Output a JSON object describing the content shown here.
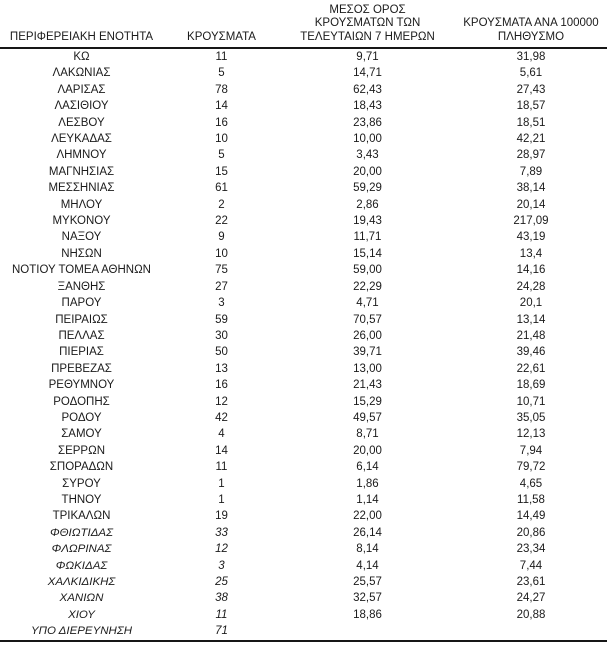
{
  "table": {
    "headers": {
      "col1": [
        "ΠΕΡΙΦΕΡΕΙΑΚΗ ΕΝΟΤΗΤΑ"
      ],
      "col2": [
        "ΚΡΟΥΣΜΑΤΑ"
      ],
      "col3": [
        "ΜΕΣΟΣ ΟΡΟΣ",
        "ΚΡΟΥΣΜΑΤΩΝ ΤΩΝ",
        "ΤΕΛΕΥΤΑΙΩΝ 7 ΗΜΕΡΩΝ"
      ],
      "col4": [
        "ΚΡΟΥΣΜΑΤΑ ΑΝΑ 100000",
        "ΠΛΗΘΥΣΜΟ"
      ]
    },
    "rows": [
      {
        "region": "ΚΩ",
        "cases": "11",
        "avg7": "9,71",
        "per100k": "31,98",
        "italic": false
      },
      {
        "region": "ΛΑΚΩΝΙΑΣ",
        "cases": "5",
        "avg7": "14,71",
        "per100k": "5,61",
        "italic": false
      },
      {
        "region": "ΛΑΡΙΣΑΣ",
        "cases": "78",
        "avg7": "62,43",
        "per100k": "27,43",
        "italic": false
      },
      {
        "region": "ΛΑΣΙΘΙΟΥ",
        "cases": "14",
        "avg7": "18,43",
        "per100k": "18,57",
        "italic": false
      },
      {
        "region": "ΛΕΣΒΟΥ",
        "cases": "16",
        "avg7": "23,86",
        "per100k": "18,51",
        "italic": false
      },
      {
        "region": "ΛΕΥΚΑΔΑΣ",
        "cases": "10",
        "avg7": "10,00",
        "per100k": "42,21",
        "italic": false
      },
      {
        "region": "ΛΗΜΝΟΥ",
        "cases": "5",
        "avg7": "3,43",
        "per100k": "28,97",
        "italic": false
      },
      {
        "region": "ΜΑΓΝΗΣΙΑΣ",
        "cases": "15",
        "avg7": "20,00",
        "per100k": "7,89",
        "italic": false
      },
      {
        "region": "ΜΕΣΣΗΝΙΑΣ",
        "cases": "61",
        "avg7": "59,29",
        "per100k": "38,14",
        "italic": false
      },
      {
        "region": "ΜΗΛΟΥ",
        "cases": "2",
        "avg7": "2,86",
        "per100k": "20,14",
        "italic": false
      },
      {
        "region": "ΜΥΚΟΝΟΥ",
        "cases": "22",
        "avg7": "19,43",
        "per100k": "217,09",
        "italic": false
      },
      {
        "region": "ΝΑΞΟΥ",
        "cases": "9",
        "avg7": "11,71",
        "per100k": "43,19",
        "italic": false
      },
      {
        "region": "ΝΗΣΩΝ",
        "cases": "10",
        "avg7": "15,14",
        "per100k": "13,4",
        "italic": false
      },
      {
        "region": "ΝΟΤΙΟΥ ΤΟΜΕΑ ΑΘΗΝΩΝ",
        "cases": "75",
        "avg7": "59,00",
        "per100k": "14,16",
        "italic": false
      },
      {
        "region": "ΞΑΝΘΗΣ",
        "cases": "27",
        "avg7": "22,29",
        "per100k": "24,28",
        "italic": false
      },
      {
        "region": "ΠΑΡΟΥ",
        "cases": "3",
        "avg7": "4,71",
        "per100k": "20,1",
        "italic": false
      },
      {
        "region": "ΠΕΙΡΑΙΩΣ",
        "cases": "59",
        "avg7": "70,57",
        "per100k": "13,14",
        "italic": false
      },
      {
        "region": "ΠΕΛΛΑΣ",
        "cases": "30",
        "avg7": "26,00",
        "per100k": "21,48",
        "italic": false
      },
      {
        "region": "ΠΙΕΡΙΑΣ",
        "cases": "50",
        "avg7": "39,71",
        "per100k": "39,46",
        "italic": false
      },
      {
        "region": "ΠΡΕΒΕΖΑΣ",
        "cases": "13",
        "avg7": "13,00",
        "per100k": "22,61",
        "italic": false
      },
      {
        "region": "ΡΕΘΥΜΝΟΥ",
        "cases": "16",
        "avg7": "21,43",
        "per100k": "18,69",
        "italic": false
      },
      {
        "region": "ΡΟΔΟΠΗΣ",
        "cases": "12",
        "avg7": "15,29",
        "per100k": "10,71",
        "italic": false
      },
      {
        "region": "ΡΟΔΟΥ",
        "cases": "42",
        "avg7": "49,57",
        "per100k": "35,05",
        "italic": false
      },
      {
        "region": "ΣΑΜΟΥ",
        "cases": "4",
        "avg7": "8,71",
        "per100k": "12,13",
        "italic": false
      },
      {
        "region": "ΣΕΡΡΩΝ",
        "cases": "14",
        "avg7": "20,00",
        "per100k": "7,94",
        "italic": false
      },
      {
        "region": "ΣΠΟΡΑΔΩΝ",
        "cases": "11",
        "avg7": "6,14",
        "per100k": "79,72",
        "italic": false
      },
      {
        "region": "ΣΥΡΟΥ",
        "cases": "1",
        "avg7": "1,86",
        "per100k": "4,65",
        "italic": false
      },
      {
        "region": "ΤΗΝΟΥ",
        "cases": "1",
        "avg7": "1,14",
        "per100k": "11,58",
        "italic": false
      },
      {
        "region": "ΤΡΙΚΑΛΩΝ",
        "cases": "19",
        "avg7": "22,00",
        "per100k": "14,49",
        "italic": false
      },
      {
        "region": "ΦΘΙΩΤΙΔΑΣ",
        "cases": "33",
        "avg7": "26,14",
        "per100k": "20,86",
        "italic": true
      },
      {
        "region": "ΦΛΩΡΙΝΑΣ",
        "cases": "12",
        "avg7": "8,14",
        "per100k": "23,34",
        "italic": true
      },
      {
        "region": "ΦΩΚΙΔΑΣ",
        "cases": "3",
        "avg7": "4,14",
        "per100k": "7,44",
        "italic": true
      },
      {
        "region": "ΧΑΛΚΙΔΙΚΗΣ",
        "cases": "25",
        "avg7": "25,57",
        "per100k": "23,61",
        "italic": true
      },
      {
        "region": "ΧΑΝΙΩΝ",
        "cases": "38",
        "avg7": "32,57",
        "per100k": "24,27",
        "italic": true
      },
      {
        "region": "ΧΙΟΥ",
        "cases": "11",
        "avg7": "18,86",
        "per100k": "20,88",
        "italic": true
      },
      {
        "region": "ΥΠΟ ΔΙΕΡΕΥΝΗΣΗ",
        "cases": "71",
        "avg7": "",
        "per100k": "",
        "italic": true
      }
    ]
  },
  "colors": {
    "text": "#1b1b1b",
    "rule": "#161616",
    "background": "#ffffff"
  }
}
